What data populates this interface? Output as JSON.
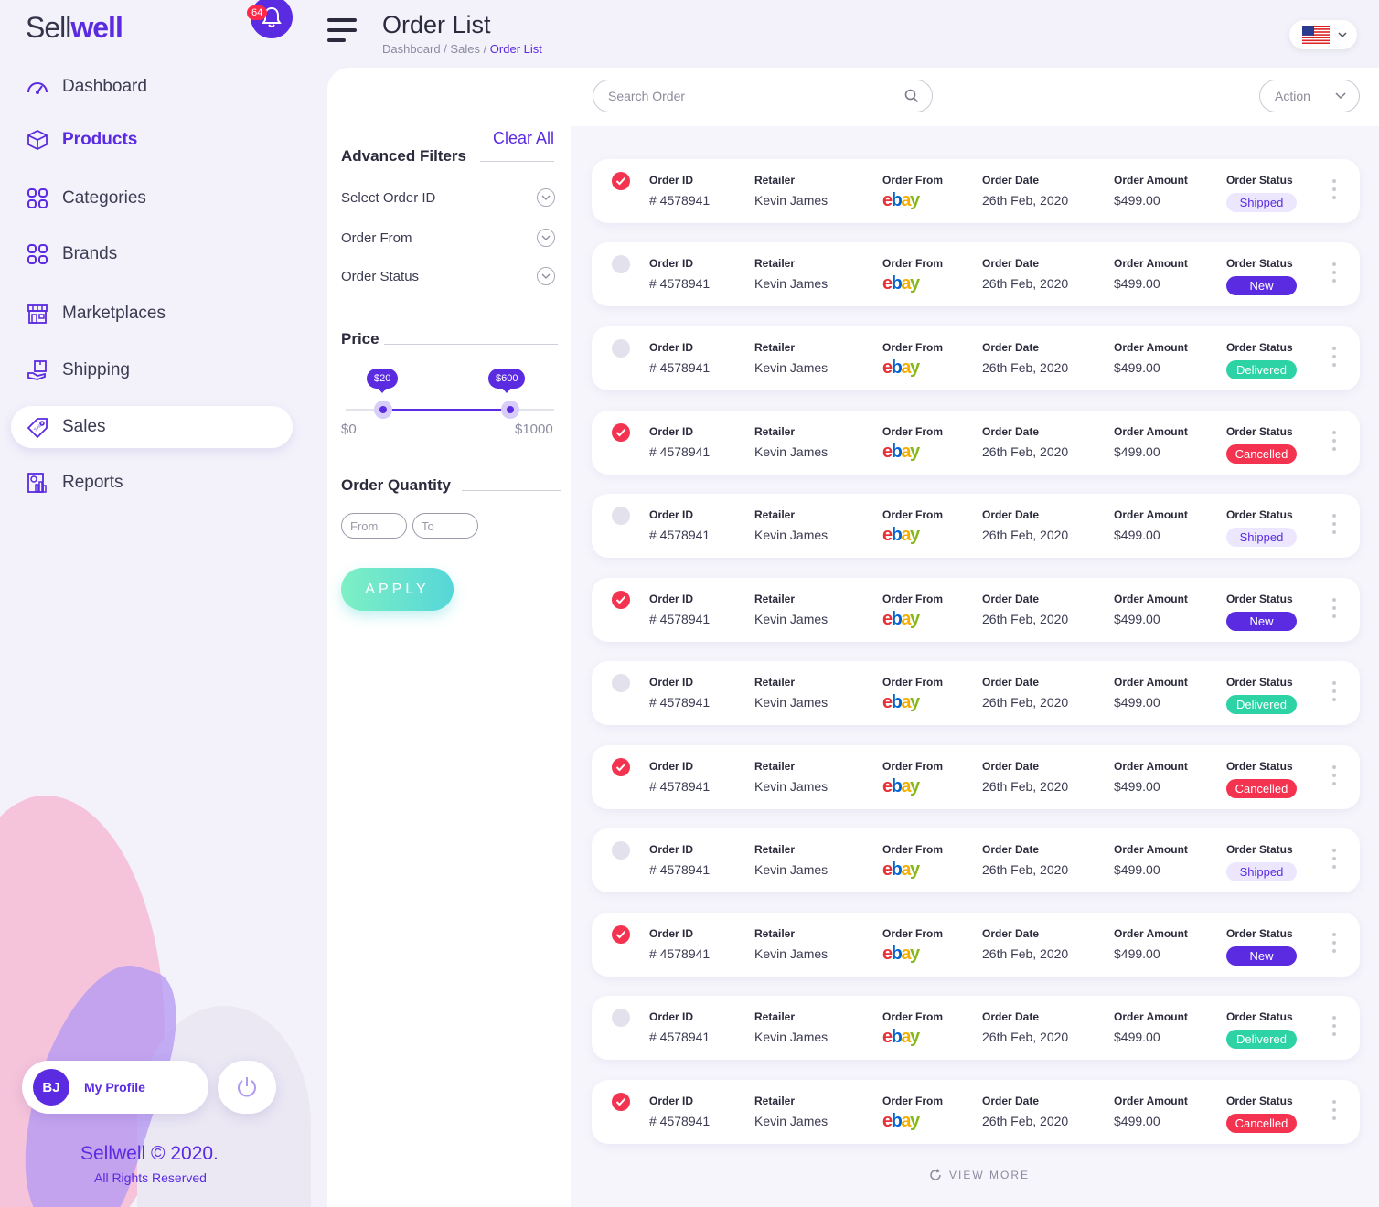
{
  "app": {
    "logo_prefix": "Sell",
    "logo_suffix": "well",
    "notifications_count": "64"
  },
  "colors": {
    "brand": "#5a2be0",
    "shipped_bg": "#ece7ff",
    "shipped_text": "#5a2be0",
    "new_bg": "#5a2be0",
    "delivered_bg": "#2ed3a5",
    "cancelled_bg": "#f43350"
  },
  "sidebar": {
    "items": [
      {
        "label": "Dashboard",
        "icon": "gauge-icon"
      },
      {
        "label": "Products",
        "icon": "box-icon"
      },
      {
        "label": "Categories",
        "icon": "grid-icon"
      },
      {
        "label": "Brands",
        "icon": "grid-icon"
      },
      {
        "label": "Marketplaces",
        "icon": "store-icon"
      },
      {
        "label": "Shipping",
        "icon": "delivery-hand-icon"
      },
      {
        "label": "Sales",
        "icon": "sale-tag-icon"
      },
      {
        "label": "Reports",
        "icon": "report-chart-icon"
      }
    ],
    "profile": {
      "initials": "BJ",
      "label": "My Profile"
    },
    "copyright": "Sellwell © 2020.",
    "rights": "All Rights Reserved"
  },
  "header": {
    "title": "Order List",
    "breadcrumb": {
      "part1": "Dashboard / Sales / ",
      "current": "Order List"
    },
    "flag_icon": "us-flag-icon"
  },
  "search": {
    "placeholder": "Search Order"
  },
  "action": {
    "label": "Action"
  },
  "filters": {
    "clear_all": "Clear All",
    "title": "Advanced Filters",
    "rows": [
      "Select Order ID",
      "Order From",
      "Order Status"
    ],
    "price": {
      "title": "Price",
      "min_label": "$0",
      "max_label": "$1000",
      "low_value": "$20",
      "high_value": "$600",
      "low_fraction": 0.02,
      "high_fraction": 0.6
    },
    "quantity": {
      "title": "Order Quantity",
      "from_placeholder": "From",
      "to_placeholder": "To"
    },
    "apply": "APPLY"
  },
  "orders": {
    "headers": {
      "id": "Order ID",
      "retailer": "Retailer",
      "from": "Order From",
      "date": "Order Date",
      "amount": "Order Amount",
      "status": "Order Status"
    },
    "rows": [
      {
        "checked": true,
        "id": "# 4578941",
        "retailer": "Kevin James",
        "from": "ebay",
        "date": "26th Feb, 2020",
        "amount": "$499.00",
        "status": "Shipped"
      },
      {
        "checked": false,
        "id": "# 4578941",
        "retailer": "Kevin James",
        "from": "ebay",
        "date": "26th Feb, 2020",
        "amount": "$499.00",
        "status": "New"
      },
      {
        "checked": false,
        "id": "# 4578941",
        "retailer": "Kevin James",
        "from": "ebay",
        "date": "26th Feb, 2020",
        "amount": "$499.00",
        "status": "Delivered"
      },
      {
        "checked": true,
        "id": "# 4578941",
        "retailer": "Kevin James",
        "from": "ebay",
        "date": "26th Feb, 2020",
        "amount": "$499.00",
        "status": "Cancelled"
      },
      {
        "checked": false,
        "id": "# 4578941",
        "retailer": "Kevin James",
        "from": "ebay",
        "date": "26th Feb, 2020",
        "amount": "$499.00",
        "status": "Shipped"
      },
      {
        "checked": true,
        "id": "# 4578941",
        "retailer": "Kevin James",
        "from": "ebay",
        "date": "26th Feb, 2020",
        "amount": "$499.00",
        "status": "New"
      },
      {
        "checked": false,
        "id": "# 4578941",
        "retailer": "Kevin James",
        "from": "ebay",
        "date": "26th Feb, 2020",
        "amount": "$499.00",
        "status": "Delivered"
      },
      {
        "checked": true,
        "id": "# 4578941",
        "retailer": "Kevin James",
        "from": "ebay",
        "date": "26th Feb, 2020",
        "amount": "$499.00",
        "status": "Cancelled"
      },
      {
        "checked": false,
        "id": "# 4578941",
        "retailer": "Kevin James",
        "from": "ebay",
        "date": "26th Feb, 2020",
        "amount": "$499.00",
        "status": "Shipped"
      },
      {
        "checked": true,
        "id": "# 4578941",
        "retailer": "Kevin James",
        "from": "ebay",
        "date": "26th Feb, 2020",
        "amount": "$499.00",
        "status": "New"
      },
      {
        "checked": false,
        "id": "# 4578941",
        "retailer": "Kevin James",
        "from": "ebay",
        "date": "26th Feb, 2020",
        "amount": "$499.00",
        "status": "Delivered"
      },
      {
        "checked": true,
        "id": "# 4578941",
        "retailer": "Kevin James",
        "from": "ebay",
        "date": "26th Feb, 2020",
        "amount": "$499.00",
        "status": "Cancelled"
      }
    ],
    "view_more": "VIEW MORE"
  }
}
